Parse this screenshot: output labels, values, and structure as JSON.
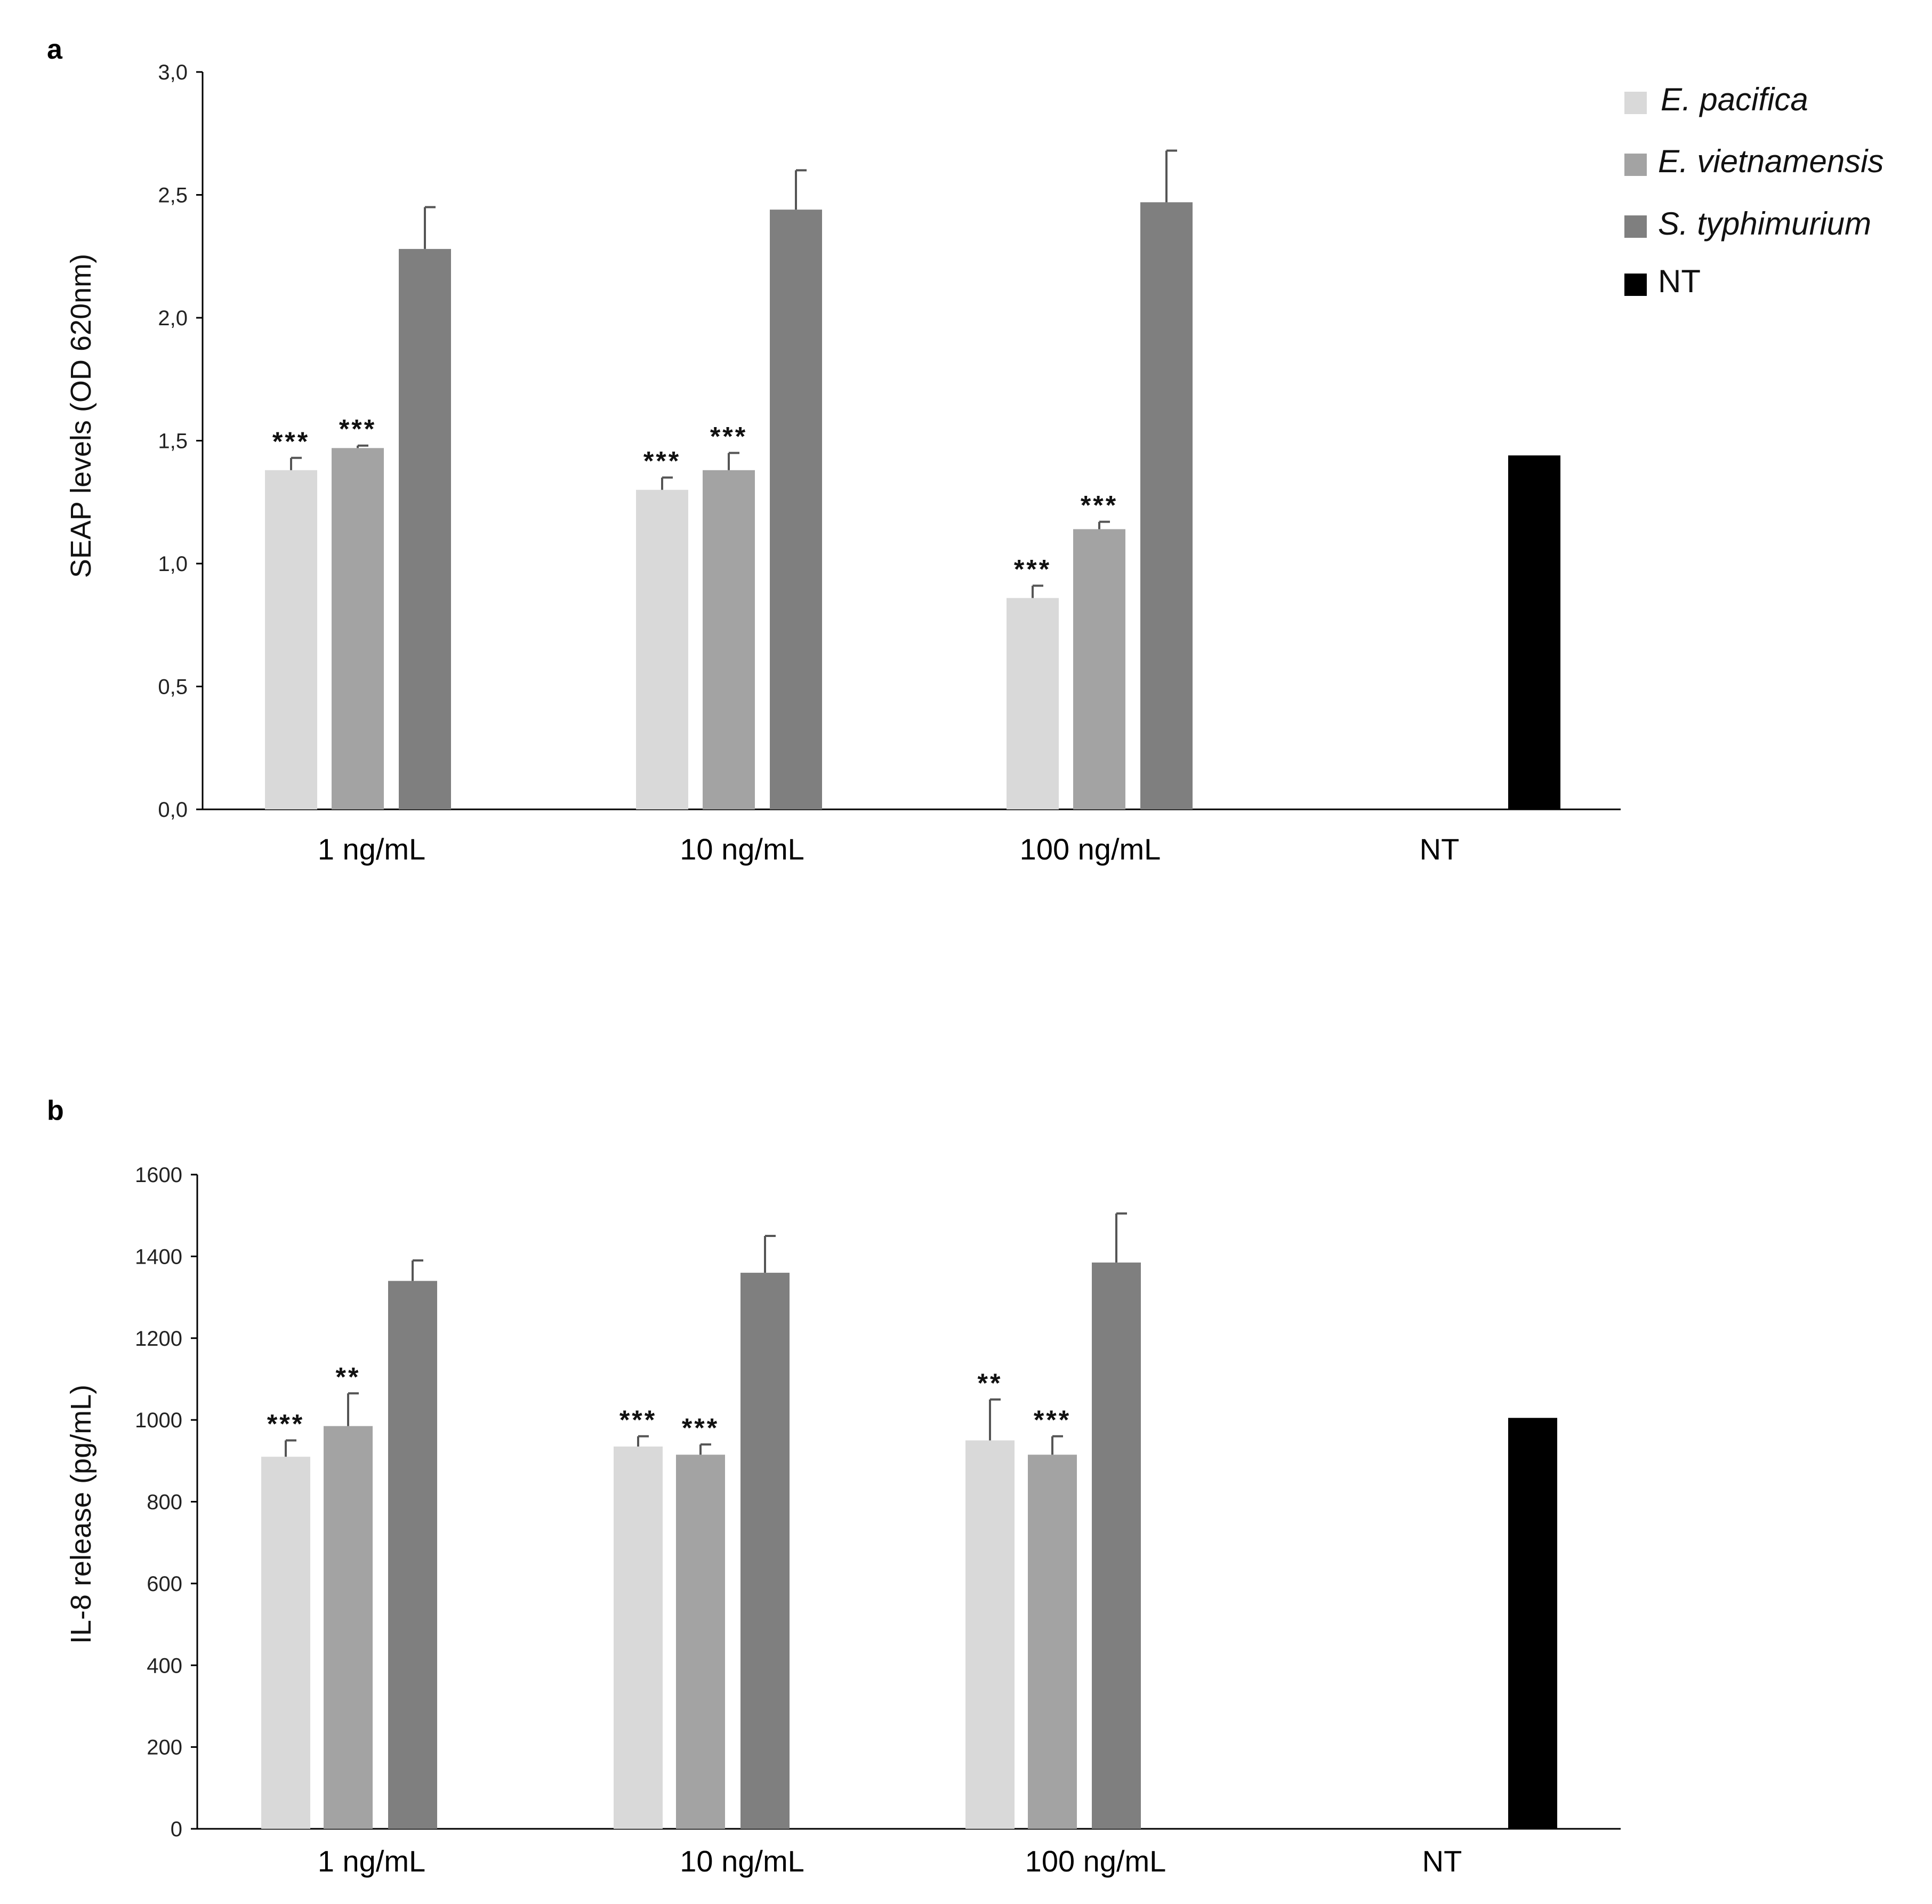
{
  "colors": {
    "E. pacifica": "#d9d9d9",
    "E. vietnamensis": "#a3a3a3",
    "S. typhimurium": "#7f7f7f",
    "NT": "#000000",
    "axis": "#000000",
    "errorbar": "#555555"
  },
  "legend": {
    "items": [
      {
        "label": "E. pacifica",
        "italic": true
      },
      {
        "label": "E. vietnamensis",
        "italic": true
      },
      {
        "label": "S. typhimurium",
        "italic": true
      },
      {
        "label": "NT",
        "italic": false
      }
    ]
  },
  "chart_data": [
    {
      "panel": "a",
      "type": "bar",
      "title": "",
      "xlabel": "",
      "ylabel": "SEAP levels (OD 620nm)",
      "ylim": [
        0,
        3.0
      ],
      "yticks": [
        "0,0",
        "0,5",
        "1,0",
        "1,5",
        "2,0",
        "2,5",
        "3,0"
      ],
      "ytick_values": [
        0,
        0.5,
        1.0,
        1.5,
        2.0,
        2.5,
        3.0
      ],
      "categories": [
        "1 ng/mL",
        "10 ng/mL",
        "100 ng/mL",
        "NT"
      ],
      "series": [
        {
          "name": "E. pacifica",
          "values": [
            1.38,
            1.3,
            0.86,
            null
          ],
          "errors": [
            0.05,
            0.05,
            0.05,
            null
          ],
          "significance": [
            "***",
            "***",
            "***",
            null
          ]
        },
        {
          "name": "E. vietnamensis",
          "values": [
            1.47,
            1.38,
            1.14,
            null
          ],
          "errors": [
            0.01,
            0.07,
            0.03,
            null
          ],
          "significance": [
            "***",
            "***",
            "***",
            null
          ]
        },
        {
          "name": "S. typhimurium",
          "values": [
            2.28,
            2.44,
            2.47,
            null
          ],
          "errors": [
            0.17,
            0.16,
            0.21,
            null
          ],
          "significance": [
            null,
            null,
            null,
            null
          ]
        },
        {
          "name": "NT",
          "values": [
            null,
            null,
            null,
            1.44
          ],
          "errors": [
            null,
            null,
            null,
            null
          ],
          "significance": [
            null,
            null,
            null,
            null
          ]
        }
      ]
    },
    {
      "panel": "b",
      "type": "bar",
      "title": "",
      "xlabel": "",
      "ylabel": "IL-8 release (pg/mL)",
      "ylim": [
        0,
        1600
      ],
      "yticks": [
        "0",
        "200",
        "400",
        "600",
        "800",
        "1000",
        "1200",
        "1400",
        "1600"
      ],
      "ytick_values": [
        0,
        200,
        400,
        600,
        800,
        1000,
        1200,
        1400,
        1600
      ],
      "categories": [
        "1 ng/mL",
        "10 ng/mL",
        "100 ng/mL",
        "NT"
      ],
      "series": [
        {
          "name": "E. pacifica",
          "values": [
            910,
            935,
            950,
            null
          ],
          "errors": [
            40,
            25,
            100,
            null
          ],
          "significance": [
            "***",
            "***",
            "**",
            null
          ]
        },
        {
          "name": "E. vietnamensis",
          "values": [
            985,
            915,
            915,
            null
          ],
          "errors": [
            80,
            25,
            45,
            null
          ],
          "significance": [
            "**",
            "***",
            "***",
            null
          ]
        },
        {
          "name": "S. typhimurium",
          "values": [
            1340,
            1360,
            1385,
            null
          ],
          "errors": [
            50,
            90,
            120,
            null
          ],
          "significance": [
            null,
            null,
            null,
            null
          ]
        },
        {
          "name": "NT",
          "values": [
            null,
            null,
            null,
            1005
          ],
          "errors": [
            null,
            null,
            null,
            null
          ],
          "significance": [
            null,
            null,
            null,
            null
          ]
        }
      ]
    }
  ]
}
